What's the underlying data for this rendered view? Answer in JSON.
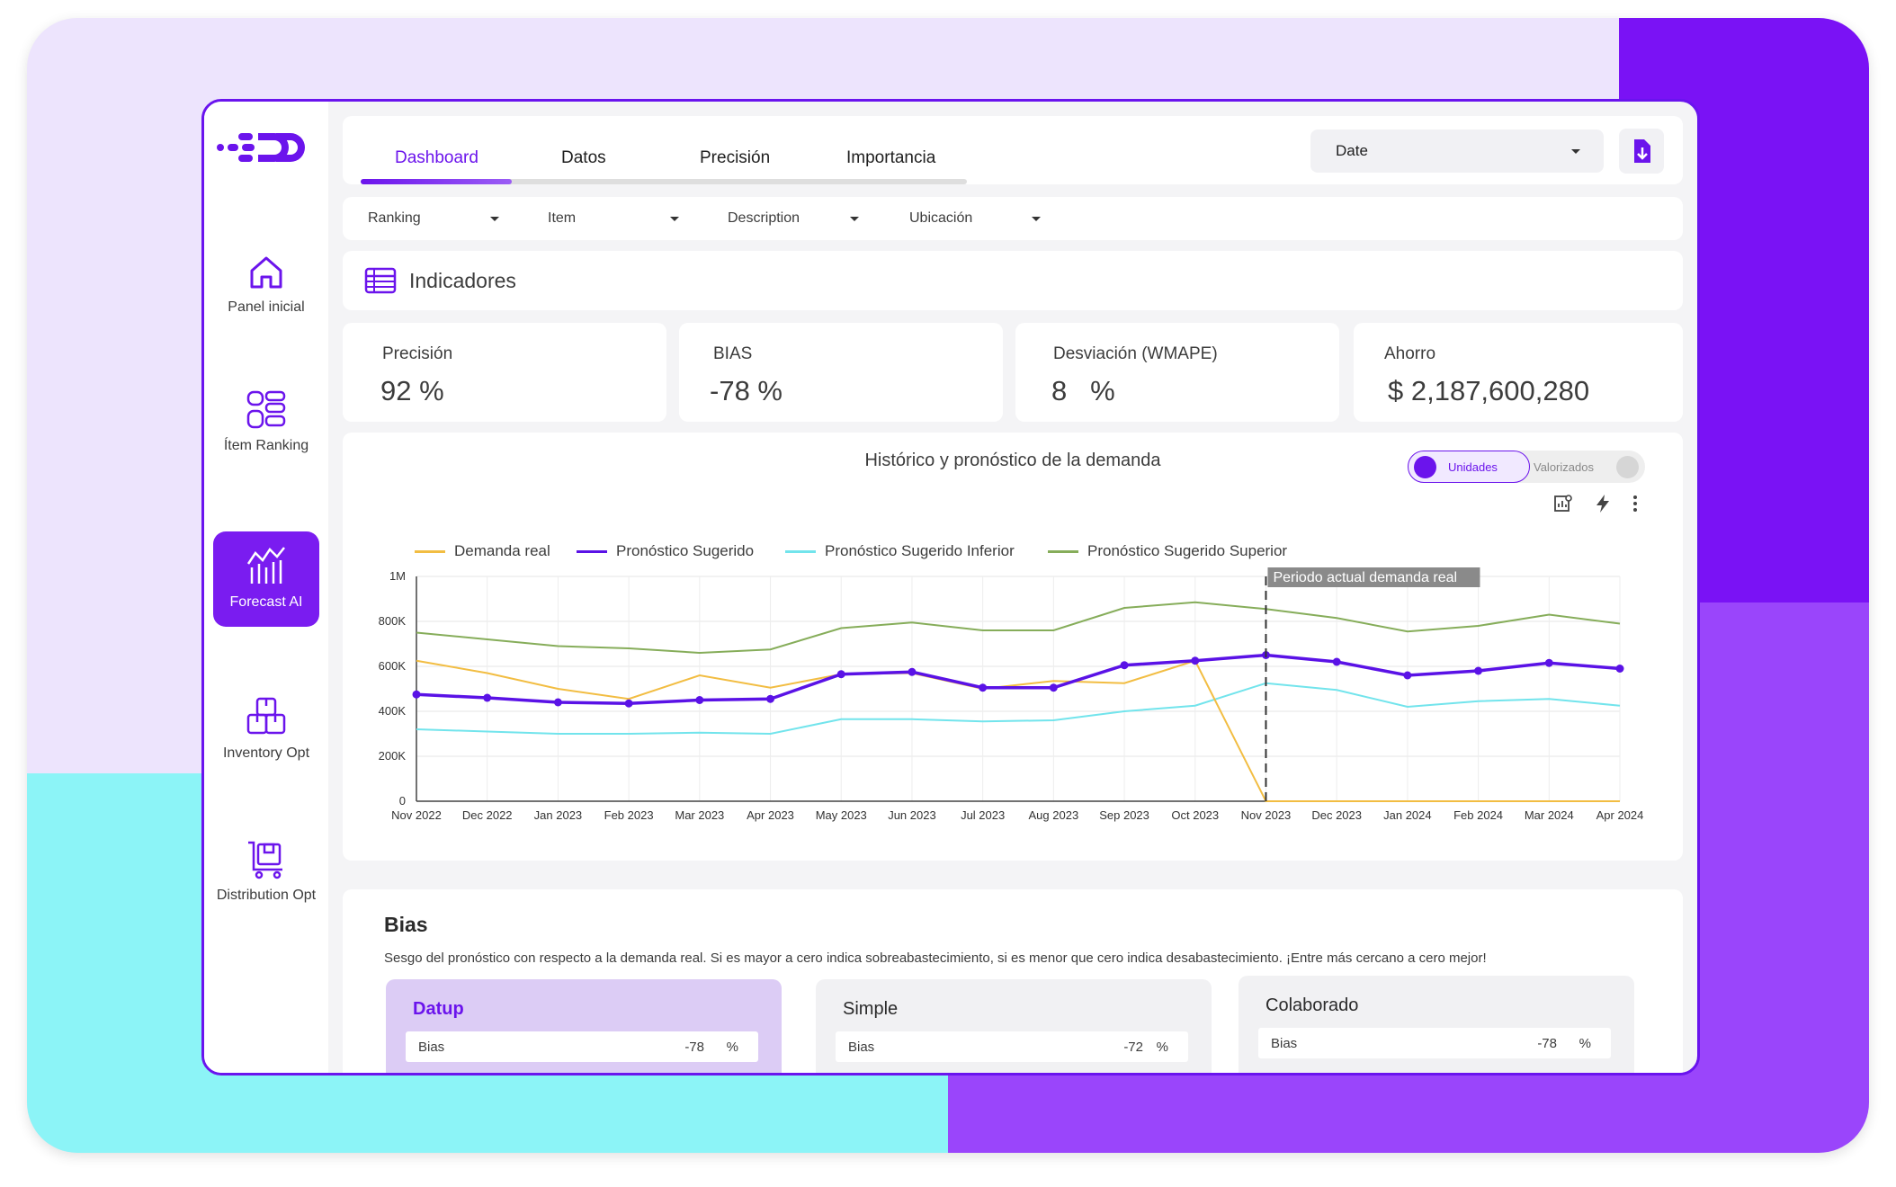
{
  "sidebar": {
    "items": [
      {
        "label": "Panel inicial",
        "icon": "home-icon"
      },
      {
        "label": "Ítem Ranking",
        "icon": "ranking-icon"
      },
      {
        "label": "Forecast AI",
        "icon": "forecast-chart-icon",
        "active": true
      },
      {
        "label": "Inventory Opt",
        "icon": "inventory-boxes-icon"
      },
      {
        "label": "Distribution Opt",
        "icon": "distribution-cart-icon"
      }
    ]
  },
  "tabs": [
    {
      "label": "Dashboard",
      "active": true
    },
    {
      "label": "Datos"
    },
    {
      "label": "Precisión"
    },
    {
      "label": "Importancia"
    }
  ],
  "date_select": {
    "value": "Date"
  },
  "download_icon": "download-file-icon",
  "filters": [
    "Ranking",
    "Item",
    "Description",
    "Ubicación"
  ],
  "indicators": {
    "title": "Indicadores",
    "icon": "table-icon"
  },
  "kpis": [
    {
      "label": "Precisión",
      "value": "92 %"
    },
    {
      "label": "BIAS",
      "value": "-78 %"
    },
    {
      "label": "Desviación (WMAPE)",
      "value": "8   %"
    },
    {
      "label": "Ahorro",
      "value": "$ 2,187,600,280"
    }
  ],
  "chart": {
    "title": "Histórico y pronóstico de la demanda",
    "toggle": {
      "on_label": "Unidades",
      "off_label": "Valorizados"
    },
    "tool_icons": [
      "chart-settings-icon",
      "lightning-icon",
      "more-vert-icon"
    ],
    "annotation": "Periodo actual demanda real"
  },
  "chart_data": {
    "type": "line",
    "title": "Histórico y pronóstico de la demanda",
    "x": [
      "Nov 2022",
      "Dec 2022",
      "Jan 2023",
      "Feb 2023",
      "Mar 2023",
      "Apr 2023",
      "May 2023",
      "Jun 2023",
      "Jul 2023",
      "Aug 2023",
      "Sep 2023",
      "Oct 2023",
      "Nov 2023",
      "Dec 2023",
      "Jan 2024",
      "Feb 2024",
      "Mar 2024",
      "Apr 2024"
    ],
    "ylim": [
      0,
      1000000
    ],
    "yticks": [
      "0",
      "200K",
      "400K",
      "600K",
      "800K",
      "1M"
    ],
    "grid": true,
    "legend_position": "top",
    "annotation": {
      "x": "Nov 2023",
      "label": "Periodo actual demanda real"
    },
    "series": [
      {
        "name": "Demanda real",
        "color": "#f2bd42",
        "values": [
          625000,
          570000,
          500000,
          455000,
          560000,
          505000,
          565000,
          570000,
          500000,
          535000,
          525000,
          625000,
          0,
          0,
          0,
          0,
          0,
          0
        ]
      },
      {
        "name": "Pronóstico Sugerido",
        "color": "#5a12e6",
        "values": [
          475000,
          460000,
          440000,
          435000,
          450000,
          455000,
          565000,
          575000,
          505000,
          505000,
          605000,
          625000,
          650000,
          620000,
          560000,
          580000,
          615000,
          590000
        ]
      },
      {
        "name": "Pronóstico Sugerido Inferior",
        "color": "#72e4ec",
        "values": [
          320000,
          310000,
          300000,
          300000,
          305000,
          300000,
          365000,
          365000,
          355000,
          360000,
          400000,
          425000,
          525000,
          495000,
          420000,
          445000,
          455000,
          425000
        ]
      },
      {
        "name": "Pronóstico Sugerido Superior",
        "color": "#86ad5a",
        "values": [
          750000,
          720000,
          690000,
          680000,
          660000,
          675000,
          770000,
          795000,
          760000,
          760000,
          860000,
          885000,
          855000,
          815000,
          755000,
          780000,
          830000,
          790000
        ]
      }
    ]
  },
  "bias": {
    "title": "Bias",
    "description": "Sesgo del pronóstico con respecto a la demanda real. Si es mayor a cero indica sobreabastecimiento, si es menor que cero indica desabastecimiento. ¡Entre más cercano a cero mejor!",
    "cards": [
      {
        "title": "Datup",
        "row_label": "Bias",
        "value": "-78",
        "unit": "%"
      },
      {
        "title": "Simple",
        "row_label": "Bias",
        "value": "-72",
        "unit": "%"
      },
      {
        "title": "Colaborado",
        "row_label": "Bias",
        "value": "-78",
        "unit": "%"
      }
    ]
  }
}
